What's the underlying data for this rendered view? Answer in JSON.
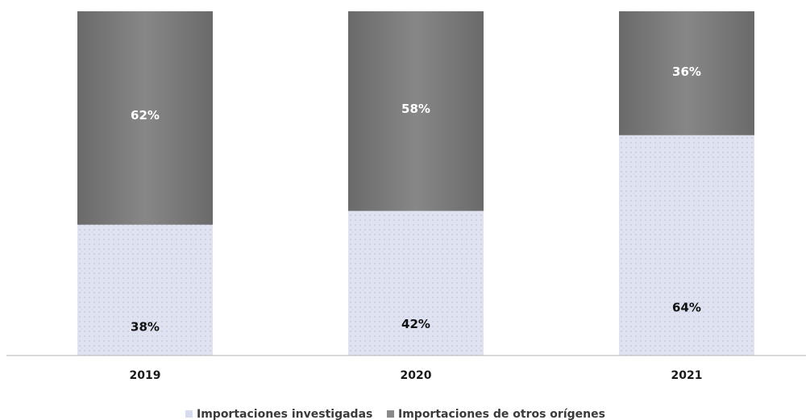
{
  "chart_data": {
    "type": "bar",
    "stacked": true,
    "percent": true,
    "categories": [
      "2019",
      "2020",
      "2021"
    ],
    "series": [
      {
        "name": "Importaciones investigadas",
        "values": [
          38,
          42,
          64
        ],
        "labels": [
          "38%",
          "42%",
          "64%"
        ],
        "color": "#d9deef",
        "label_color": "#111111"
      },
      {
        "name": "Importaciones de otros orígenes",
        "values": [
          62,
          58,
          36
        ],
        "labels": [
          "62%",
          "58%",
          "36%"
        ],
        "color": "#7a7a7a",
        "label_color": "#ffffff"
      }
    ],
    "ylim": [
      0,
      100
    ],
    "grid": false,
    "legend": "bottom-center"
  }
}
